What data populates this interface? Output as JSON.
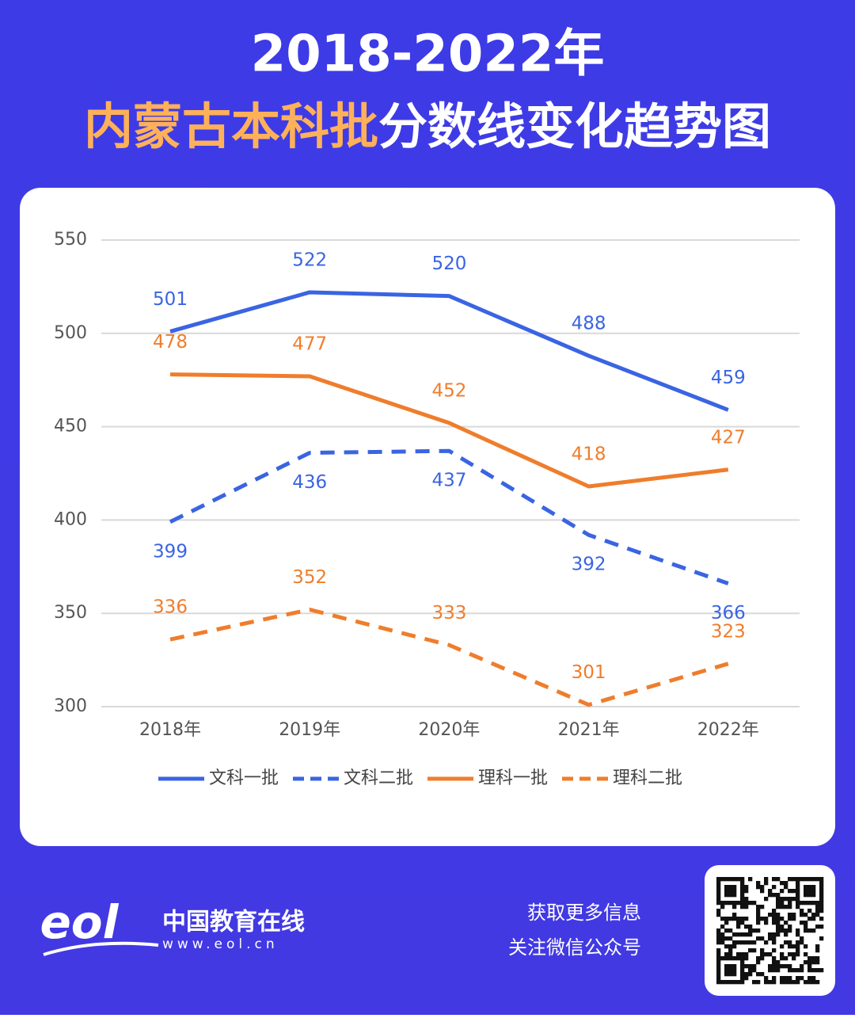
{
  "header": {
    "title_line1": "2018-2022年",
    "title_highlight": "内蒙古本科批",
    "title_rest": "分数线变化趋势图"
  },
  "chart_data": {
    "type": "line",
    "categories": [
      "2018年",
      "2019年",
      "2020年",
      "2021年",
      "2022年"
    ],
    "series": [
      {
        "name": "文科一批",
        "color": "#3a64e2",
        "dash": false,
        "values": [
          501,
          522,
          520,
          488,
          459
        ]
      },
      {
        "name": "文科二批",
        "color": "#3a64e2",
        "dash": true,
        "values": [
          399,
          436,
          437,
          392,
          366
        ]
      },
      {
        "name": "理科一批",
        "color": "#ef7d2c",
        "dash": false,
        "values": [
          478,
          477,
          452,
          418,
          427
        ]
      },
      {
        "name": "理科二批",
        "color": "#ef7d2c",
        "dash": true,
        "values": [
          336,
          352,
          333,
          301,
          323
        ]
      }
    ],
    "ylim": [
      300,
      550
    ],
    "yticks": [
      300,
      350,
      400,
      450,
      500,
      550
    ],
    "grid": true,
    "legend": "bottom"
  },
  "footer": {
    "logo": "eol",
    "brand": "中国教育在线",
    "url": "www.eol.cn",
    "line1": "获取更多信息",
    "line2": "关注微信公众号"
  }
}
